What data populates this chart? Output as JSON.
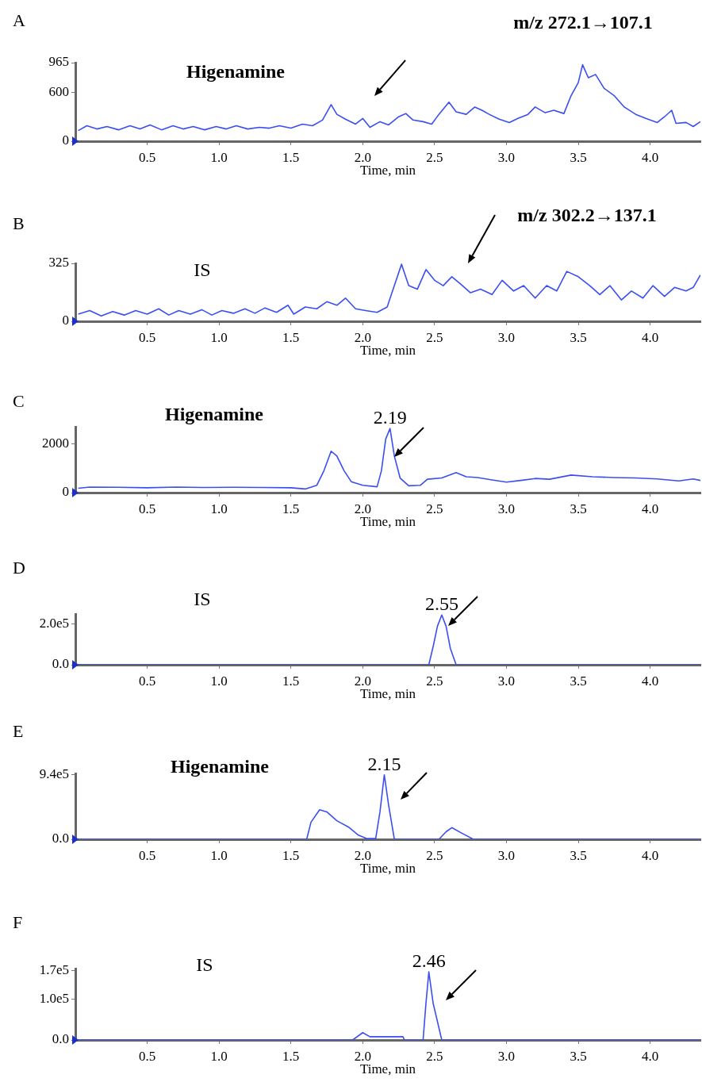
{
  "chart_data": [
    {
      "type": "line",
      "title": "A",
      "xlabel": "Time, min",
      "color": "#3b4ef2",
      "marker": "none",
      "grid": false,
      "legend": false,
      "xlim": [
        0,
        4.35
      ],
      "xticks": [
        0.5,
        {
          "value": 1,
          "label": "1.0"
        },
        1.5,
        {
          "value": 2,
          "label": "2.0"
        },
        2.5,
        {
          "value": 3,
          "label": "3.0"
        },
        3.5,
        {
          "value": 4,
          "label": "4.0"
        }
      ],
      "ylim": [
        0,
        965
      ],
      "yticks": [
        0,
        600,
        965
      ],
      "annotations": [
        "Higenamine",
        "m/z 272.1→107.1"
      ],
      "x": [
        0.02,
        0.08,
        0.15,
        0.22,
        0.3,
        0.38,
        0.45,
        0.52,
        0.6,
        0.68,
        0.75,
        0.82,
        0.9,
        0.98,
        1.05,
        1.12,
        1.2,
        1.28,
        1.35,
        1.42,
        1.5,
        1.58,
        1.65,
        1.72,
        1.78,
        1.82,
        1.88,
        1.95,
        2.0,
        2.05,
        2.12,
        2.18,
        2.25,
        2.3,
        2.35,
        2.42,
        2.48,
        2.53,
        2.6,
        2.65,
        2.72,
        2.78,
        2.83,
        2.88,
        2.95,
        3.02,
        3.08,
        3.15,
        3.2,
        3.27,
        3.33,
        3.4,
        3.45,
        3.5,
        3.53,
        3.57,
        3.62,
        3.68,
        3.75,
        3.82,
        3.9,
        3.97,
        4.05,
        4.1,
        4.15,
        4.18,
        4.25,
        4.3,
        4.35
      ],
      "values": [
        130,
        190,
        150,
        180,
        140,
        190,
        150,
        200,
        140,
        190,
        150,
        180,
        140,
        180,
        150,
        190,
        150,
        170,
        160,
        190,
        160,
        210,
        190,
        260,
        450,
        330,
        270,
        210,
        280,
        170,
        240,
        200,
        300,
        340,
        260,
        240,
        210,
        330,
        480,
        360,
        330,
        420,
        380,
        330,
        270,
        230,
        280,
        330,
        420,
        350,
        380,
        340,
        560,
        720,
        940,
        780,
        820,
        650,
        560,
        420,
        330,
        280,
        230,
        300,
        380,
        220,
        230,
        180,
        240
      ]
    },
    {
      "type": "line",
      "title": "B",
      "xlabel": "Time, min",
      "color": "#3b4ef2",
      "marker": "none",
      "grid": false,
      "legend": false,
      "xlim": [
        0,
        4.35
      ],
      "xticks": [
        0.5,
        {
          "value": 1,
          "label": "1.0"
        },
        1.5,
        {
          "value": 2,
          "label": "2.0"
        },
        2.5,
        {
          "value": 3,
          "label": "3.0"
        },
        3.5,
        {
          "value": 4,
          "label": "4.0"
        }
      ],
      "ylim": [
        0,
        325
      ],
      "yticks": [
        0,
        325
      ],
      "annotations": [
        "IS",
        "m/z 302.2→137.1"
      ],
      "x": [
        0.02,
        0.1,
        0.18,
        0.26,
        0.34,
        0.42,
        0.5,
        0.58,
        0.65,
        0.72,
        0.8,
        0.88,
        0.95,
        1.02,
        1.1,
        1.18,
        1.25,
        1.32,
        1.4,
        1.48,
        1.52,
        1.6,
        1.68,
        1.75,
        1.82,
        1.88,
        1.95,
        2.02,
        2.1,
        2.17,
        2.22,
        2.27,
        2.32,
        2.38,
        2.44,
        2.5,
        2.56,
        2.62,
        2.68,
        2.75,
        2.82,
        2.9,
        2.97,
        3.05,
        3.12,
        3.2,
        3.28,
        3.35,
        3.42,
        3.5,
        3.58,
        3.65,
        3.72,
        3.8,
        3.87,
        3.95,
        4.02,
        4.1,
        4.17,
        4.25,
        4.3,
        4.35
      ],
      "values": [
        40,
        60,
        30,
        55,
        35,
        60,
        40,
        70,
        35,
        60,
        40,
        65,
        35,
        60,
        45,
        70,
        45,
        75,
        50,
        90,
        40,
        80,
        70,
        110,
        90,
        130,
        70,
        60,
        50,
        80,
        200,
        320,
        200,
        180,
        290,
        230,
        200,
        250,
        210,
        160,
        180,
        150,
        230,
        170,
        200,
        130,
        200,
        170,
        280,
        250,
        200,
        150,
        200,
        120,
        170,
        130,
        200,
        140,
        190,
        170,
        190,
        260
      ]
    },
    {
      "type": "line",
      "title": "C",
      "xlabel": "Time, min",
      "color": "#3b4ef2",
      "marker": "none",
      "grid": false,
      "legend": false,
      "xlim": [
        0,
        4.35
      ],
      "xticks": [
        0.5,
        {
          "value": 1,
          "label": "1.0"
        },
        1.5,
        {
          "value": 2,
          "label": "2.0"
        },
        2.5,
        {
          "value": 3,
          "label": "3.0"
        },
        3.5,
        {
          "value": 4,
          "label": "4.0"
        }
      ],
      "ylim": [
        0,
        2700
      ],
      "yticks": [
        0,
        2000
      ],
      "annotations": [
        "Higenamine",
        {
          "text": "2.19",
          "x": 2.19,
          "y": 2630
        }
      ],
      "x": [
        0.02,
        0.1,
        0.3,
        0.5,
        0.7,
        0.9,
        1.1,
        1.3,
        1.5,
        1.6,
        1.68,
        1.73,
        1.78,
        1.82,
        1.87,
        1.92,
        2.0,
        2.1,
        2.13,
        2.16,
        2.19,
        2.22,
        2.26,
        2.32,
        2.4,
        2.45,
        2.55,
        2.65,
        2.72,
        2.8,
        2.9,
        3.0,
        3.1,
        3.2,
        3.3,
        3.45,
        3.6,
        3.75,
        3.9,
        4.05,
        4.2,
        4.3,
        4.35
      ],
      "values": [
        180,
        230,
        220,
        200,
        230,
        210,
        220,
        210,
        200,
        150,
        300,
        900,
        1700,
        1500,
        900,
        450,
        300,
        240,
        900,
        2200,
        2630,
        1500,
        600,
        280,
        300,
        550,
        600,
        820,
        650,
        620,
        520,
        430,
        500,
        580,
        550,
        720,
        650,
        620,
        600,
        560,
        480,
        560,
        500
      ]
    },
    {
      "type": "line",
      "title": "D",
      "xlabel": "Time, min",
      "color": "#3b4ef2",
      "marker": "none",
      "grid": false,
      "legend": false,
      "xlim": [
        0,
        4.35
      ],
      "xticks": [
        0.5,
        {
          "value": 1,
          "label": "1.0"
        },
        1.5,
        {
          "value": 2,
          "label": "2.0"
        },
        2.5,
        {
          "value": 3,
          "label": "3.0"
        },
        3.5,
        {
          "value": 4,
          "label": "4.0"
        }
      ],
      "ylim": [
        0,
        250000
      ],
      "yticks": [
        {
          "value": 0,
          "label": "0.0"
        },
        {
          "value": 200000,
          "label": "2.0e5"
        }
      ],
      "annotations": [
        "IS",
        {
          "text": "2.55",
          "x": 2.55,
          "y": 245000
        }
      ],
      "x": [
        0,
        2.46,
        2.49,
        2.52,
        2.55,
        2.58,
        2.61,
        2.65,
        4.35
      ],
      "values": [
        0,
        0,
        90000,
        190000,
        245000,
        190000,
        80000,
        0,
        0
      ]
    },
    {
      "type": "line",
      "title": "E",
      "xlabel": "Time, min",
      "color": "#3b4ef2",
      "marker": "none",
      "grid": false,
      "legend": false,
      "xlim": [
        0,
        4.35
      ],
      "xticks": [
        0.5,
        {
          "value": 1,
          "label": "1.0"
        },
        1.5,
        {
          "value": 2,
          "label": "2.0"
        },
        2.5,
        {
          "value": 3,
          "label": "3.0"
        },
        3.5,
        {
          "value": 4,
          "label": "4.0"
        }
      ],
      "ylim": [
        0,
        960000
      ],
      "yticks": [
        {
          "value": 0,
          "label": "0.0"
        },
        {
          "value": 940000,
          "label": "9.4e5"
        }
      ],
      "annotations": [
        "Higenamine",
        {
          "text": "2.15",
          "x": 2.15,
          "y": 940000
        }
      ],
      "x": [
        0,
        1.61,
        1.64,
        1.7,
        1.75,
        1.82,
        1.9,
        1.97,
        2.03,
        2.09,
        2.12,
        2.15,
        2.18,
        2.22,
        2.53,
        2.58,
        2.62,
        2.68,
        2.77,
        4.35
      ],
      "values": [
        0,
        0,
        250000,
        430000,
        400000,
        270000,
        180000,
        60000,
        10000,
        10000,
        400000,
        940000,
        500000,
        0,
        0,
        110000,
        170000,
        100000,
        0,
        0
      ]
    },
    {
      "type": "line",
      "title": "F",
      "xlabel": "Time, min",
      "color": "#3b4ef2",
      "marker": "none",
      "grid": false,
      "legend": false,
      "xlim": [
        0,
        4.35
      ],
      "xticks": [
        0.5,
        {
          "value": 1,
          "label": "1.0"
        },
        1.5,
        {
          "value": 2,
          "label": "2.0"
        },
        2.5,
        {
          "value": 3,
          "label": "3.0"
        },
        3.5,
        {
          "value": 4,
          "label": "4.0"
        }
      ],
      "ylim": [
        0,
        175000
      ],
      "yticks": [
        {
          "value": 0,
          "label": "0.0"
        },
        {
          "value": 100000,
          "label": "1.0e5"
        },
        {
          "value": 170000,
          "label": "1.7e5"
        }
      ],
      "annotations": [
        "IS",
        {
          "text": "2.46",
          "x": 2.46,
          "y": 167000
        }
      ],
      "x": [
        0,
        1.93,
        2.0,
        2.05,
        2.28,
        2.29,
        2.42,
        2.44,
        2.46,
        2.49,
        2.55,
        4.35
      ],
      "values": [
        0,
        0,
        18000,
        8000,
        8000,
        0,
        0,
        90000,
        167000,
        90000,
        0,
        0
      ]
    }
  ]
}
